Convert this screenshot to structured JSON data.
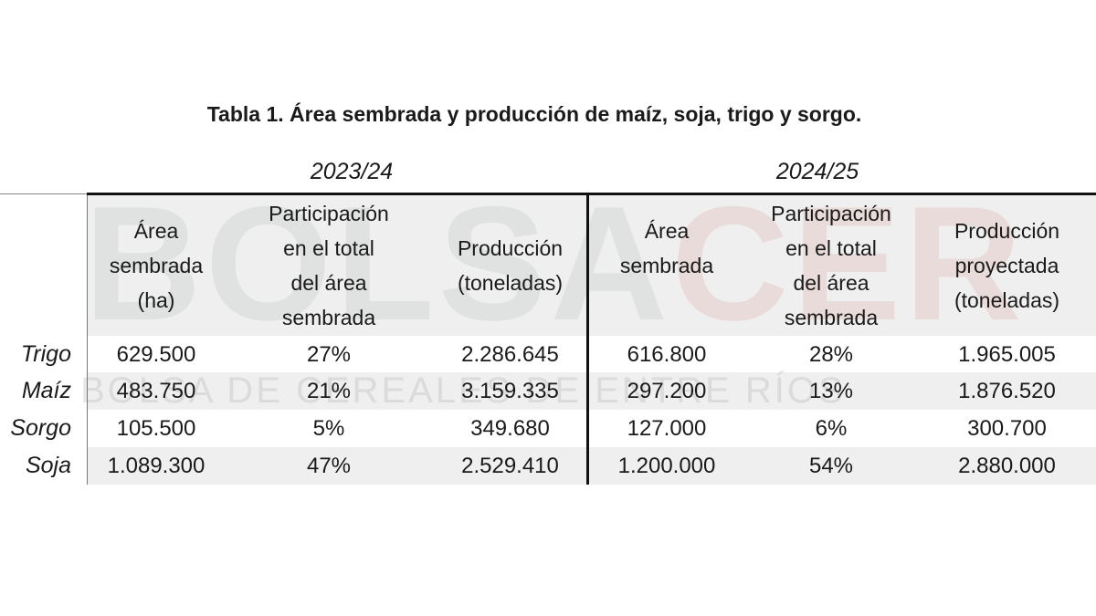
{
  "title": "Tabla 1. Área sembrada y producción de maíz, soja, trigo y sorgo.",
  "watermark": {
    "logo": "BOLSACER",
    "logo_part1": "BOLSA",
    "logo_part2": "CER",
    "subtitle": "BOLSA DE CEREALES DE ENTRE RÍOS"
  },
  "periods": [
    "2023/24",
    "2024/25"
  ],
  "headers": [
    [
      "Área",
      "sembrada",
      "(ha)"
    ],
    [
      "Participación",
      "en el total",
      "del área",
      "sembrada"
    ],
    [
      "Producción",
      "(toneladas)"
    ],
    [
      "Área",
      "sembrada"
    ],
    [
      "Participación",
      "en el total",
      "del área",
      "sembrada"
    ],
    [
      "Producción",
      "proyectada",
      "(toneladas)"
    ]
  ],
  "rows": [
    {
      "crop": "Trigo",
      "values": [
        "629.500",
        "27%",
        "2.286.645",
        "616.800",
        "28%",
        "1.965.005"
      ]
    },
    {
      "crop": "Maíz",
      "values": [
        "483.750",
        "21%",
        "3.159.335",
        "297.200",
        "13%",
        "1.876.520"
      ]
    },
    {
      "crop": "Sorgo",
      "values": [
        "105.500",
        "5%",
        "349.680",
        "127.000",
        "6%",
        "300.700"
      ]
    },
    {
      "crop": "Soja",
      "values": [
        "1.089.300",
        "47%",
        "2.529.410",
        "1.200.000",
        "54%",
        "2.880.000"
      ]
    }
  ],
  "colors": {
    "header_bg": "#efefef",
    "stripe": "#efefef",
    "watermark_gray": "#b4b8b8",
    "watermark_red": "#d9b0a8"
  }
}
